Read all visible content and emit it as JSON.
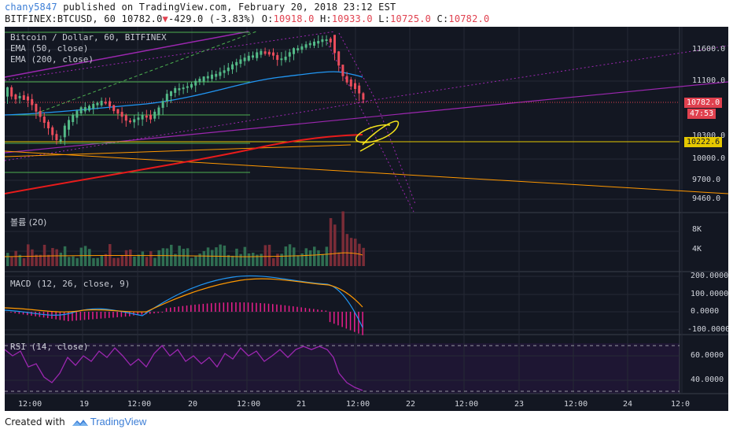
{
  "header": {
    "author": "chany5847",
    "published_text": " published on TradingView.com, February 20, 2018 23:12 EST",
    "symbol": "BITFINEX:BTCUSD, 60",
    "last": "10782.0",
    "change": "-429.0 (-3.83%)",
    "o_label": " O:",
    "o": "10918.0",
    "h_label": " H:",
    "h": "10933.0",
    "l_label": " L:",
    "l": "10725.0",
    "c_label": " C:",
    "c": "10782.0"
  },
  "panes": {
    "main": {
      "title": "Bitcoin / Dollar, 60, BITFINEX",
      "ema50": "EMA (50, close)",
      "ema200": "EMA (200, close)"
    },
    "volume": {
      "title": "볼륨 (20)"
    },
    "macd": {
      "title": "MACD (12, 26, close, 9)"
    },
    "rsi": {
      "title": "RSI (14, close)"
    }
  },
  "price_axis": [
    "11600.0",
    "11100.0",
    "10300.0",
    "10000.0",
    "9700.0",
    "9460.0"
  ],
  "price_tags": {
    "last_price": "10782.0",
    "countdown": "47:53",
    "level": "10222.6"
  },
  "volume_axis": [
    "8K",
    "4K"
  ],
  "macd_axis": [
    "200.0000",
    "100.0000",
    "0.0000",
    "-100.0000"
  ],
  "rsi_axis": [
    "60.0000",
    "40.0000"
  ],
  "time_axis": [
    "12:00",
    "19",
    "12:00",
    "20",
    "12:00",
    "21",
    "12:00",
    "22",
    "12:00",
    "23",
    "12:00",
    "24",
    "12:0"
  ],
  "footer": {
    "created_with": "Created with",
    "brand": "TradingView"
  },
  "colors": {
    "up": "#53b987",
    "down": "#eb4d5c",
    "ema50": "#2196f3",
    "ema200": "#e81b1b",
    "channel": "#9c27b0",
    "background": "#131722"
  }
}
